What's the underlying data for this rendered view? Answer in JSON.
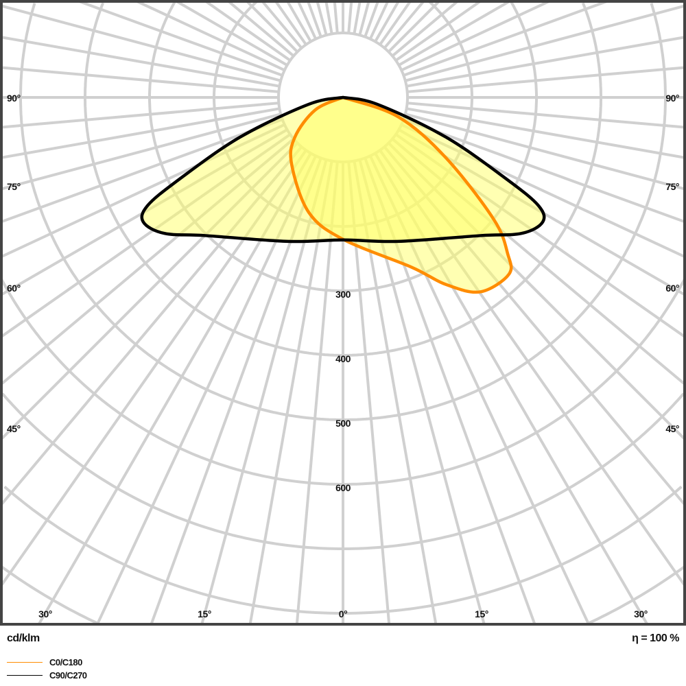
{
  "chart_data": {
    "type": "polar",
    "unit_label": "cd/klm",
    "efficiency_label": "η = 100 %",
    "radial_ticks": [
      100,
      200,
      300,
      400,
      500,
      600,
      700,
      800,
      900
    ],
    "radial_tick_labels": [
      "300",
      "400",
      "500",
      "600"
    ],
    "radial_labeled_values": [
      300,
      400,
      500,
      600
    ],
    "angle_labels_side": [
      "90°",
      "75°",
      "60°",
      "45°"
    ],
    "angle_labels_bottom": [
      "30°",
      "15°",
      "0°",
      "15°",
      "30°"
    ],
    "grid": true,
    "series": [
      {
        "name": "C0/C180",
        "color": "#ff8c00",
        "gamma": [
          -90,
          -65.8,
          -50.4,
          -37.4,
          -16.6,
          0,
          22,
          28.8,
          35.2,
          43.2,
          46.5,
          51,
          59.6,
          70.7,
          90
        ],
        "values": [
          0,
          47,
          97,
          131,
          186,
          220,
          284,
          331,
          369,
          376,
          352,
          301,
          185,
          90,
          0
        ]
      },
      {
        "name": "C90/C270",
        "color": "#000000",
        "gamma": [
          -90,
          -78.7,
          -68.9,
          -63.4,
          -61,
          -58,
          -52.7,
          -44.8,
          -20.9,
          0,
          20.9,
          44.8,
          52.7,
          58,
          61,
          63.4,
          68.9,
          78.7,
          90
        ],
        "values": [
          0,
          54,
          171,
          285,
          347,
          365,
          348,
          302,
          239,
          221,
          239,
          302,
          348,
          365,
          347,
          285,
          171,
          54,
          0
        ]
      }
    ],
    "fill_color": "#ffff66"
  }
}
